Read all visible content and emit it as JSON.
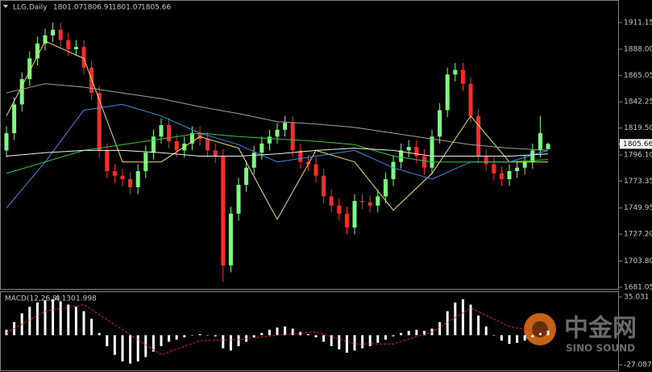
{
  "header": {
    "symbol": "LLG,Daily"
  },
  "chart_data": [
    {
      "type": "candlestick",
      "open": [
        1800,
        1815,
        1840,
        1862,
        1880,
        1893,
        1900,
        1905,
        1896,
        1888,
        1890,
        1872,
        1850,
        1800,
        1782,
        1778,
        1775,
        1768,
        1782,
        1798,
        1812,
        1822,
        1808,
        1800,
        1806,
        1815,
        1810,
        1800,
        1795,
        1700,
        1745,
        1770,
        1785,
        1798,
        1806,
        1812,
        1818,
        1824,
        1800,
        1790,
        1788,
        1778,
        1760,
        1752,
        1745,
        1733,
        1756,
        1755,
        1752,
        1760,
        1775,
        1790,
        1800,
        1803,
        1795,
        1785,
        1812,
        1835,
        1866,
        1870,
        1858,
        1830,
        1795,
        1788,
        1780,
        1775,
        1782,
        1785,
        1790,
        1800,
        1801.07
      ],
      "high": [
        1821,
        1846,
        1868,
        1886,
        1899,
        1906,
        1911,
        1911,
        1902,
        1896,
        1896,
        1878,
        1856,
        1806,
        1788,
        1784,
        1781,
        1788,
        1804,
        1818,
        1828,
        1828,
        1814,
        1812,
        1821,
        1821,
        1816,
        1806,
        1801,
        1751,
        1776,
        1791,
        1804,
        1812,
        1818,
        1824,
        1830,
        1830,
        1806,
        1796,
        1794,
        1784,
        1766,
        1758,
        1751,
        1762,
        1762,
        1761,
        1766,
        1781,
        1796,
        1806,
        1809,
        1809,
        1801,
        1818,
        1841,
        1872,
        1876,
        1876,
        1864,
        1836,
        1801,
        1794,
        1786,
        1788,
        1791,
        1796,
        1806,
        1830,
        1806.91
      ],
      "low": [
        1794,
        1809,
        1834,
        1856,
        1874,
        1887,
        1894,
        1890,
        1882,
        1882,
        1866,
        1844,
        1794,
        1776,
        1772,
        1769,
        1762,
        1762,
        1776,
        1792,
        1806,
        1802,
        1794,
        1794,
        1800,
        1804,
        1794,
        1789,
        1686,
        1694,
        1739,
        1764,
        1779,
        1792,
        1800,
        1806,
        1812,
        1794,
        1784,
        1782,
        1772,
        1754,
        1746,
        1739,
        1727,
        1727,
        1749,
        1746,
        1746,
        1754,
        1769,
        1784,
        1794,
        1789,
        1779,
        1779,
        1806,
        1829,
        1860,
        1852,
        1824,
        1789,
        1782,
        1774,
        1769,
        1769,
        1776,
        1779,
        1784,
        1794,
        1801.07
      ],
      "close": [
        1815,
        1840,
        1862,
        1880,
        1893,
        1900,
        1905,
        1896,
        1888,
        1890,
        1872,
        1850,
        1800,
        1782,
        1778,
        1775,
        1768,
        1782,
        1798,
        1812,
        1822,
        1808,
        1800,
        1806,
        1815,
        1810,
        1800,
        1795,
        1700,
        1745,
        1770,
        1785,
        1798,
        1806,
        1812,
        1818,
        1824,
        1800,
        1790,
        1788,
        1778,
        1760,
        1752,
        1745,
        1733,
        1756,
        1755,
        1752,
        1760,
        1775,
        1790,
        1800,
        1803,
        1795,
        1785,
        1812,
        1835,
        1866,
        1870,
        1858,
        1830,
        1795,
        1788,
        1780,
        1775,
        1782,
        1785,
        1790,
        1800,
        1815,
        1805.66
      ],
      "up_color": "#7CFC7C",
      "down_color": "#FF2A2A",
      "moving_averages": {
        "x": [
          0,
          5,
          10,
          15,
          20,
          25,
          30,
          35,
          40,
          45,
          50,
          55,
          60,
          65,
          70
        ],
        "series": [
          {
            "color": "#f0e060",
            "values": [
              1830,
              1895,
              1880,
              1790,
              1790,
              1812,
              1802,
              1740,
              1800,
              1790,
              1748,
              1780,
              1830,
              1790,
              1790
            ]
          },
          {
            "color": "#3a8ee6",
            "values": [
              1750,
              1790,
              1835,
              1840,
              1830,
              1815,
              1805,
              1790,
              1795,
              1800,
              1785,
              1775,
              1790,
              1790,
              1800
            ]
          },
          {
            "color": "#a0a0a0",
            "values": [
              1850,
              1858,
              1855,
              1850,
              1845,
              1838,
              1832,
              1825,
              1823,
              1820,
              1815,
              1810,
              1805,
              1802,
              1800
            ]
          },
          {
            "color": "#3cc83c",
            "values": [
              1780,
              1790,
              1800,
              1805,
              1810,
              1815,
              1812,
              1810,
              1808,
              1805,
              1795,
              1790,
              1790,
              1790,
              1792
            ]
          },
          {
            "color": "#f0f0f0",
            "values": [
              1795,
              1798,
              1800,
              1800,
              1798,
              1795,
              1795,
              1797,
              1800,
              1802,
              1800,
              1795,
              1795,
              1795,
              1797
            ]
          }
        ]
      },
      "ylim": [
        1679.6,
        1929.4
      ],
      "yticks": [
        1911.15,
        {
          "value": 1888,
          "label": "1888.00"
        },
        1865.05,
        1842.25,
        {
          "value": 1819.5,
          "label": "1819.50"
        },
        {
          "value": 1796.1,
          "label": "1796.10"
        },
        1773.35,
        1749.95,
        {
          "value": 1727.2,
          "label": "1727.20"
        },
        {
          "value": 1703.8,
          "label": "1703.80"
        },
        1681.05
      ]
    },
    {
      "type": "macd",
      "name": "MACD(12,26,9)",
      "histogram": [
        5,
        12,
        20,
        26,
        30,
        32,
        33,
        31,
        28,
        26,
        22,
        15,
        2,
        -10,
        -18,
        -24,
        -26,
        -24,
        -20,
        -15,
        -10,
        -6,
        -4,
        -2,
        0,
        1,
        0,
        -1,
        -12,
        -14,
        -10,
        -6,
        -2,
        2,
        5,
        7,
        8,
        6,
        3,
        1,
        -2,
        -6,
        -10,
        -13,
        -16,
        -14,
        -12,
        -10,
        -7,
        -4,
        -1,
        2,
        4,
        5,
        4,
        6,
        12,
        22,
        30,
        33,
        28,
        18,
        8,
        0,
        -5,
        -8,
        -7,
        -5,
        -2,
        2,
        4.13
      ],
      "histogram_color": "#ffffff",
      "signal": {
        "x": [
          0,
          5,
          10,
          15,
          20,
          25,
          30,
          35,
          40,
          45,
          50,
          55,
          60,
          65,
          70
        ],
        "values": [
          2,
          22,
          28,
          5,
          -18,
          -5,
          -4,
          0,
          3,
          -8,
          -8,
          3,
          25,
          8,
          1.998
        ],
        "color": "#e02020"
      },
      "readout": [
        {
          "value": 4.13,
          "label": "4.130"
        },
        1.998
      ],
      "ylim": [
        -31.5,
        39.47
      ],
      "yticks": [
        35.031,
        -27.087
      ]
    }
  ],
  "watermark": {
    "name": "中金网",
    "brand": "SINO SOUND"
  }
}
